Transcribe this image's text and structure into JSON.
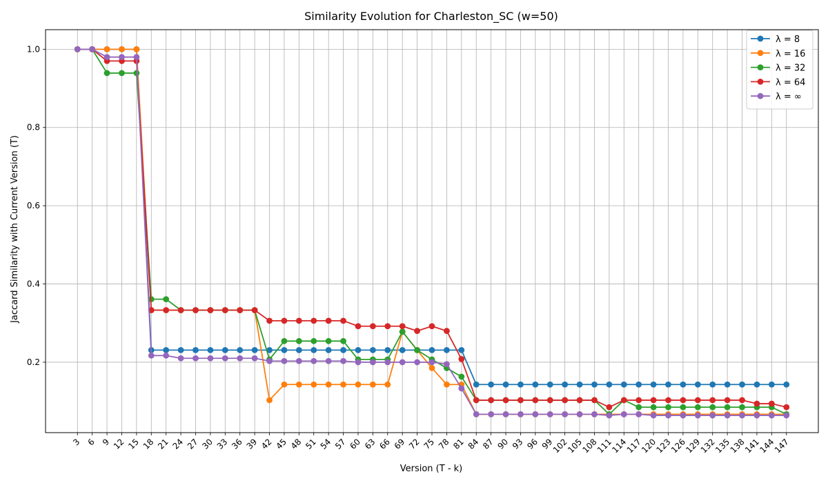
{
  "chart_data": {
    "type": "line",
    "title": "Similarity Evolution for Charleston_SC (w=50)",
    "xlabel": "Version (T - k)",
    "ylabel": "Jaccard Similarity with Current Version (T)",
    "x": [
      3,
      6,
      9,
      12,
      15,
      18,
      21,
      24,
      27,
      30,
      33,
      36,
      39,
      42,
      45,
      48,
      51,
      54,
      57,
      60,
      63,
      66,
      69,
      72,
      75,
      78,
      81,
      84,
      87,
      90,
      93,
      96,
      99,
      102,
      105,
      108,
      111,
      114,
      117,
      120,
      123,
      126,
      129,
      132,
      135,
      138,
      141,
      144,
      147
    ],
    "x_tick_labels": [
      "3",
      "6",
      "9",
      "12",
      "15",
      "18",
      "21",
      "24",
      "27",
      "30",
      "33",
      "36",
      "39",
      "42",
      "45",
      "48",
      "51",
      "54",
      "57",
      "60",
      "63",
      "66",
      "69",
      "72",
      "75",
      "78",
      "81",
      "84",
      "87",
      "90",
      "93",
      "96",
      "99",
      "102",
      "105",
      "108",
      "111",
      "114",
      "117",
      "120",
      "123",
      "126",
      "129",
      "132",
      "135",
      "138",
      "141",
      "144",
      "147"
    ],
    "y_ticks": [
      0.2,
      0.4,
      0.6,
      0.8,
      1.0
    ],
    "y_tick_labels": [
      "0.2",
      "0.4",
      "0.6",
      "0.8",
      "1.0"
    ],
    "ylim": [
      0.02,
      1.05
    ],
    "grid": true,
    "legend_position": "top-right",
    "series": [
      {
        "name": "λ = 8",
        "color": "#1f77b4",
        "values": [
          1.0,
          1.0,
          1.0,
          1.0,
          1.0,
          0.231,
          0.231,
          0.231,
          0.231,
          0.231,
          0.231,
          0.231,
          0.231,
          0.231,
          0.231,
          0.231,
          0.231,
          0.231,
          0.231,
          0.231,
          0.231,
          0.231,
          0.231,
          0.231,
          0.231,
          0.231,
          0.231,
          0.143,
          0.143,
          0.143,
          0.143,
          0.143,
          0.143,
          0.143,
          0.143,
          0.143,
          0.143,
          0.143,
          0.143,
          0.143,
          0.143,
          0.143,
          0.143,
          0.143,
          0.143,
          0.143,
          0.143,
          0.143,
          0.143
        ]
      },
      {
        "name": "λ = 16",
        "color": "#ff7f0e",
        "values": [
          1.0,
          1.0,
          1.0,
          1.0,
          1.0,
          0.333,
          0.333,
          0.333,
          0.333,
          0.333,
          0.333,
          0.333,
          0.333,
          0.103,
          0.143,
          0.143,
          0.143,
          0.143,
          0.143,
          0.143,
          0.143,
          0.143,
          0.278,
          0.231,
          0.185,
          0.143,
          0.143,
          0.067,
          0.067,
          0.067,
          0.067,
          0.067,
          0.067,
          0.067,
          0.067,
          0.067,
          0.067,
          0.067,
          0.067,
          0.067,
          0.067,
          0.067,
          0.067,
          0.067,
          0.067,
          0.067,
          0.067,
          0.067,
          0.067
        ]
      },
      {
        "name": "λ = 32",
        "color": "#2ca02c",
        "values": [
          1.0,
          1.0,
          0.939,
          0.939,
          0.939,
          0.361,
          0.361,
          0.333,
          0.333,
          0.333,
          0.333,
          0.333,
          0.333,
          0.207,
          0.254,
          0.254,
          0.254,
          0.254,
          0.254,
          0.207,
          0.207,
          0.207,
          0.278,
          0.231,
          0.207,
          0.185,
          0.163,
          0.103,
          0.103,
          0.103,
          0.103,
          0.103,
          0.103,
          0.103,
          0.103,
          0.103,
          0.067,
          0.103,
          0.085,
          0.085,
          0.085,
          0.085,
          0.085,
          0.085,
          0.085,
          0.085,
          0.085,
          0.085,
          0.067
        ]
      },
      {
        "name": "λ = 64",
        "color": "#d62728",
        "values": [
          1.0,
          1.0,
          0.97,
          0.97,
          0.97,
          0.333,
          0.333,
          0.333,
          0.333,
          0.333,
          0.333,
          0.333,
          0.333,
          0.306,
          0.306,
          0.306,
          0.306,
          0.306,
          0.306,
          0.292,
          0.292,
          0.292,
          0.292,
          0.28,
          0.292,
          0.28,
          0.208,
          0.103,
          0.103,
          0.103,
          0.103,
          0.103,
          0.103,
          0.103,
          0.103,
          0.103,
          0.085,
          0.103,
          0.103,
          0.103,
          0.103,
          0.103,
          0.103,
          0.103,
          0.103,
          0.103,
          0.094,
          0.094,
          0.085
        ]
      },
      {
        "name": "λ = ∞",
        "color": "#9467bd",
        "values": [
          1.0,
          1.0,
          0.98,
          0.98,
          0.98,
          0.217,
          0.217,
          0.21,
          0.21,
          0.21,
          0.21,
          0.21,
          0.21,
          0.203,
          0.203,
          0.203,
          0.203,
          0.203,
          0.203,
          0.2,
          0.2,
          0.2,
          0.2,
          0.2,
          0.2,
          0.195,
          0.133,
          0.067,
          0.067,
          0.067,
          0.067,
          0.067,
          0.067,
          0.067,
          0.067,
          0.067,
          0.064,
          0.067,
          0.067,
          0.064,
          0.064,
          0.064,
          0.064,
          0.064,
          0.064,
          0.064,
          0.064,
          0.064,
          0.064
        ]
      }
    ]
  }
}
